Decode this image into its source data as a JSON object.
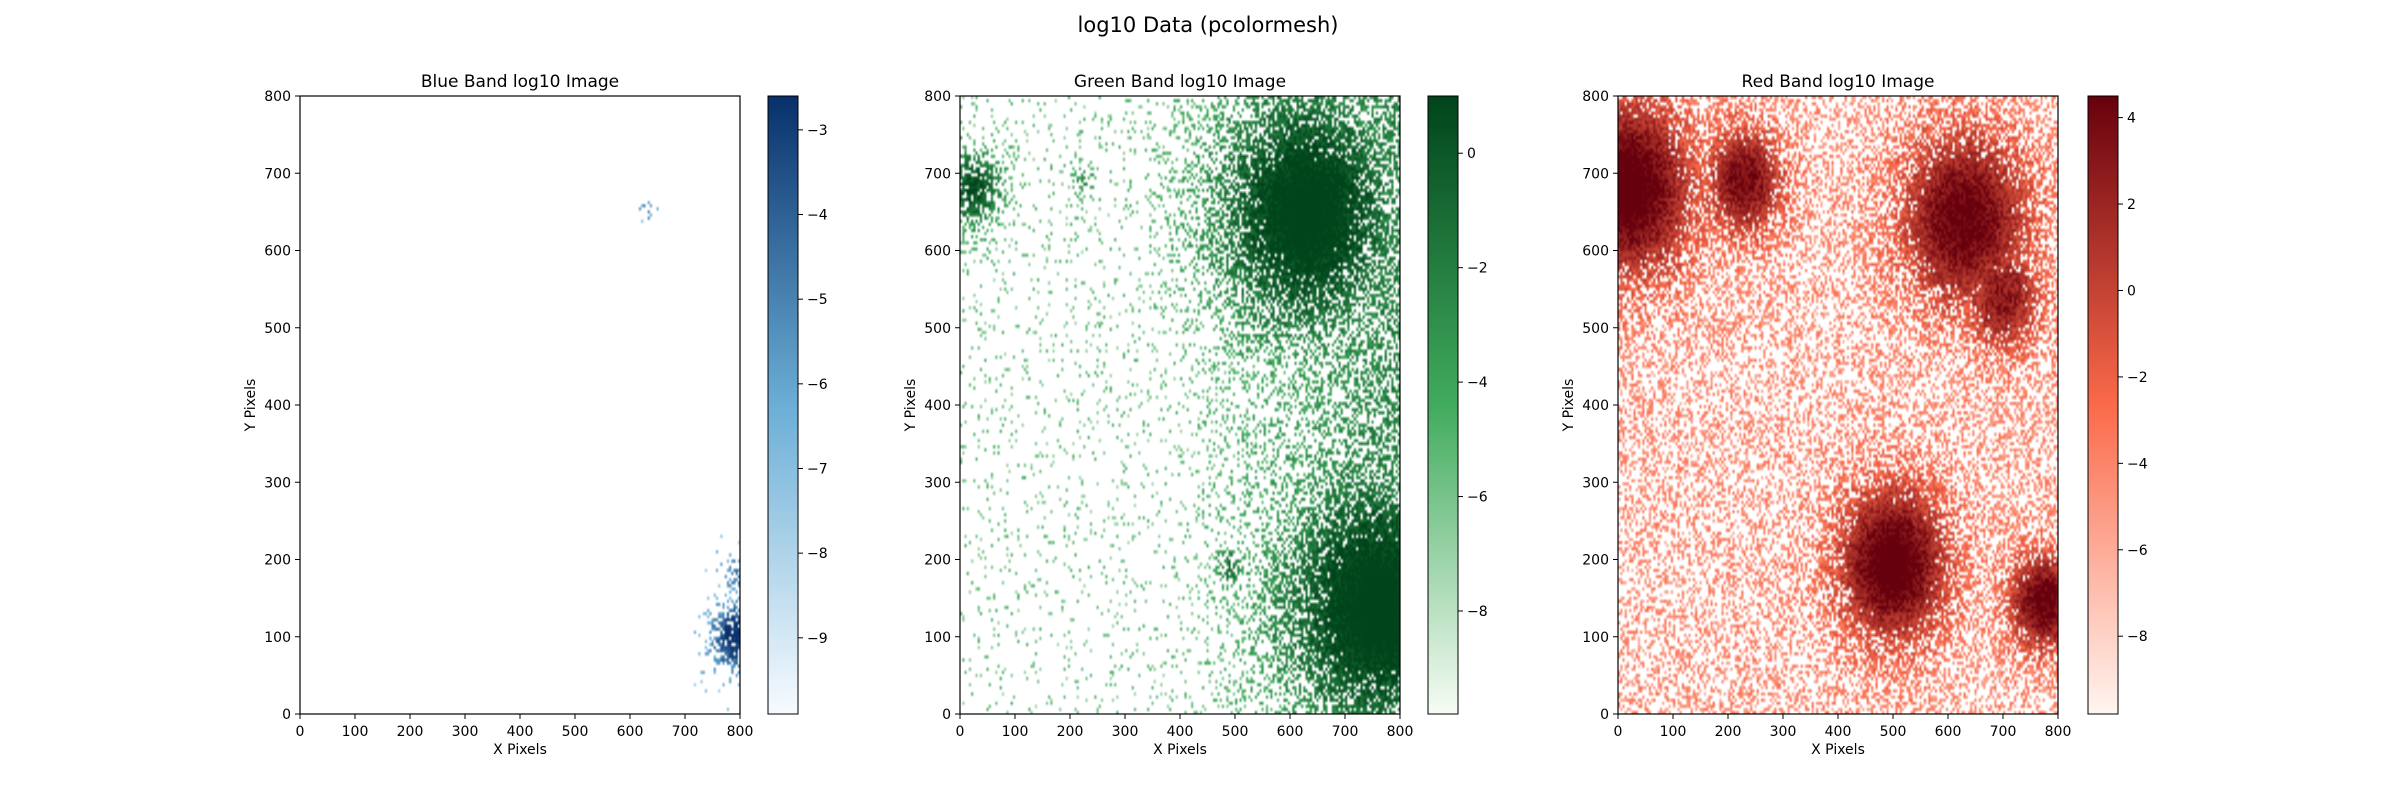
{
  "figure": {
    "suptitle": "log10 Data (pcolormesh)"
  },
  "chart_data": [
    {
      "type": "heatmap",
      "title": "Blue Band log10 Image",
      "xlabel": "X Pixels",
      "ylabel": "Y Pixels",
      "xlim": [
        0,
        800
      ],
      "ylim": [
        0,
        800
      ],
      "xticks": [
        0,
        100,
        200,
        300,
        400,
        500,
        600,
        700,
        800
      ],
      "yticks": [
        0,
        100,
        200,
        300,
        400,
        500,
        600,
        700,
        800
      ],
      "colormap": "Blues",
      "colorbar": {
        "range": [
          -9.9,
          -2.6
        ],
        "ticks": [
          -9,
          -8,
          -7,
          -6,
          -5,
          -4,
          -3
        ]
      },
      "colors": {
        "low": "#f7fbff",
        "mid": "#6baed6",
        "high": "#08306b"
      },
      "background_density": 0.0,
      "sources": [
        {
          "x": 630,
          "y": 650,
          "radius": 8,
          "strength": 0.55
        },
        {
          "x": 790,
          "y": 100,
          "radius": 30,
          "strength": 0.9
        },
        {
          "x": 795,
          "y": 180,
          "radius": 20,
          "strength": 0.4
        }
      ],
      "gradient": {
        "from_x": 770,
        "strength": 0.0
      },
      "grid": false
    },
    {
      "type": "heatmap",
      "title": "Green Band log10 Image",
      "xlabel": "X Pixels",
      "ylabel": "Y Pixels",
      "xlim": [
        0,
        800
      ],
      "ylim": [
        0,
        800
      ],
      "xticks": [
        0,
        100,
        200,
        300,
        400,
        500,
        600,
        700,
        800
      ],
      "yticks": [
        0,
        100,
        200,
        300,
        400,
        500,
        600,
        700,
        800
      ],
      "colormap": "Greens",
      "colorbar": {
        "range": [
          -9.8,
          1.0
        ],
        "ticks": [
          -8,
          -6,
          -4,
          -2,
          0
        ]
      },
      "colors": {
        "low": "#f7fcf5",
        "mid": "#41ab5d",
        "high": "#00441b"
      },
      "background_density": 0.06,
      "sources": [
        {
          "x": 630,
          "y": 650,
          "radius": 120,
          "strength": 1.0
        },
        {
          "x": 760,
          "y": 140,
          "radius": 130,
          "strength": 1.0
        },
        {
          "x": 25,
          "y": 680,
          "radius": 35,
          "strength": 0.8
        },
        {
          "x": 490,
          "y": 190,
          "radius": 18,
          "strength": 0.6
        },
        {
          "x": 225,
          "y": 690,
          "radius": 15,
          "strength": 0.35
        },
        {
          "x": 740,
          "y": 540,
          "radius": 60,
          "strength": 0.4
        }
      ],
      "gradient": {
        "from_x": 400,
        "strength": 0.45
      },
      "grid": false
    },
    {
      "type": "heatmap",
      "title": "Red Band log10 Image",
      "xlabel": "X Pixels",
      "ylabel": "Y Pixels",
      "xlim": [
        0,
        800
      ],
      "ylim": [
        0,
        800
      ],
      "xticks": [
        0,
        100,
        200,
        300,
        400,
        500,
        600,
        700,
        800
      ],
      "yticks": [
        0,
        100,
        200,
        300,
        400,
        500,
        600,
        700,
        800
      ],
      "colormap": "Reds",
      "colorbar": {
        "range": [
          -9.8,
          4.5
        ],
        "ticks": [
          -8,
          -6,
          -4,
          -2,
          0,
          2,
          4
        ]
      },
      "colors": {
        "low": "#fff5f0",
        "mid": "#fb6a4a",
        "high": "#67000d"
      },
      "background_density": 0.38,
      "sources": [
        {
          "x": 20,
          "y": 680,
          "radius": 80,
          "strength": 1.0
        },
        {
          "x": 230,
          "y": 690,
          "radius": 50,
          "strength": 0.8
        },
        {
          "x": 630,
          "y": 640,
          "radius": 80,
          "strength": 0.9
        },
        {
          "x": 700,
          "y": 540,
          "radius": 50,
          "strength": 0.7
        },
        {
          "x": 500,
          "y": 195,
          "radius": 70,
          "strength": 1.0
        },
        {
          "x": 775,
          "y": 145,
          "radius": 45,
          "strength": 0.9
        }
      ],
      "gradient": {
        "from_x": 0,
        "strength": 0.0
      },
      "grid": false
    }
  ]
}
